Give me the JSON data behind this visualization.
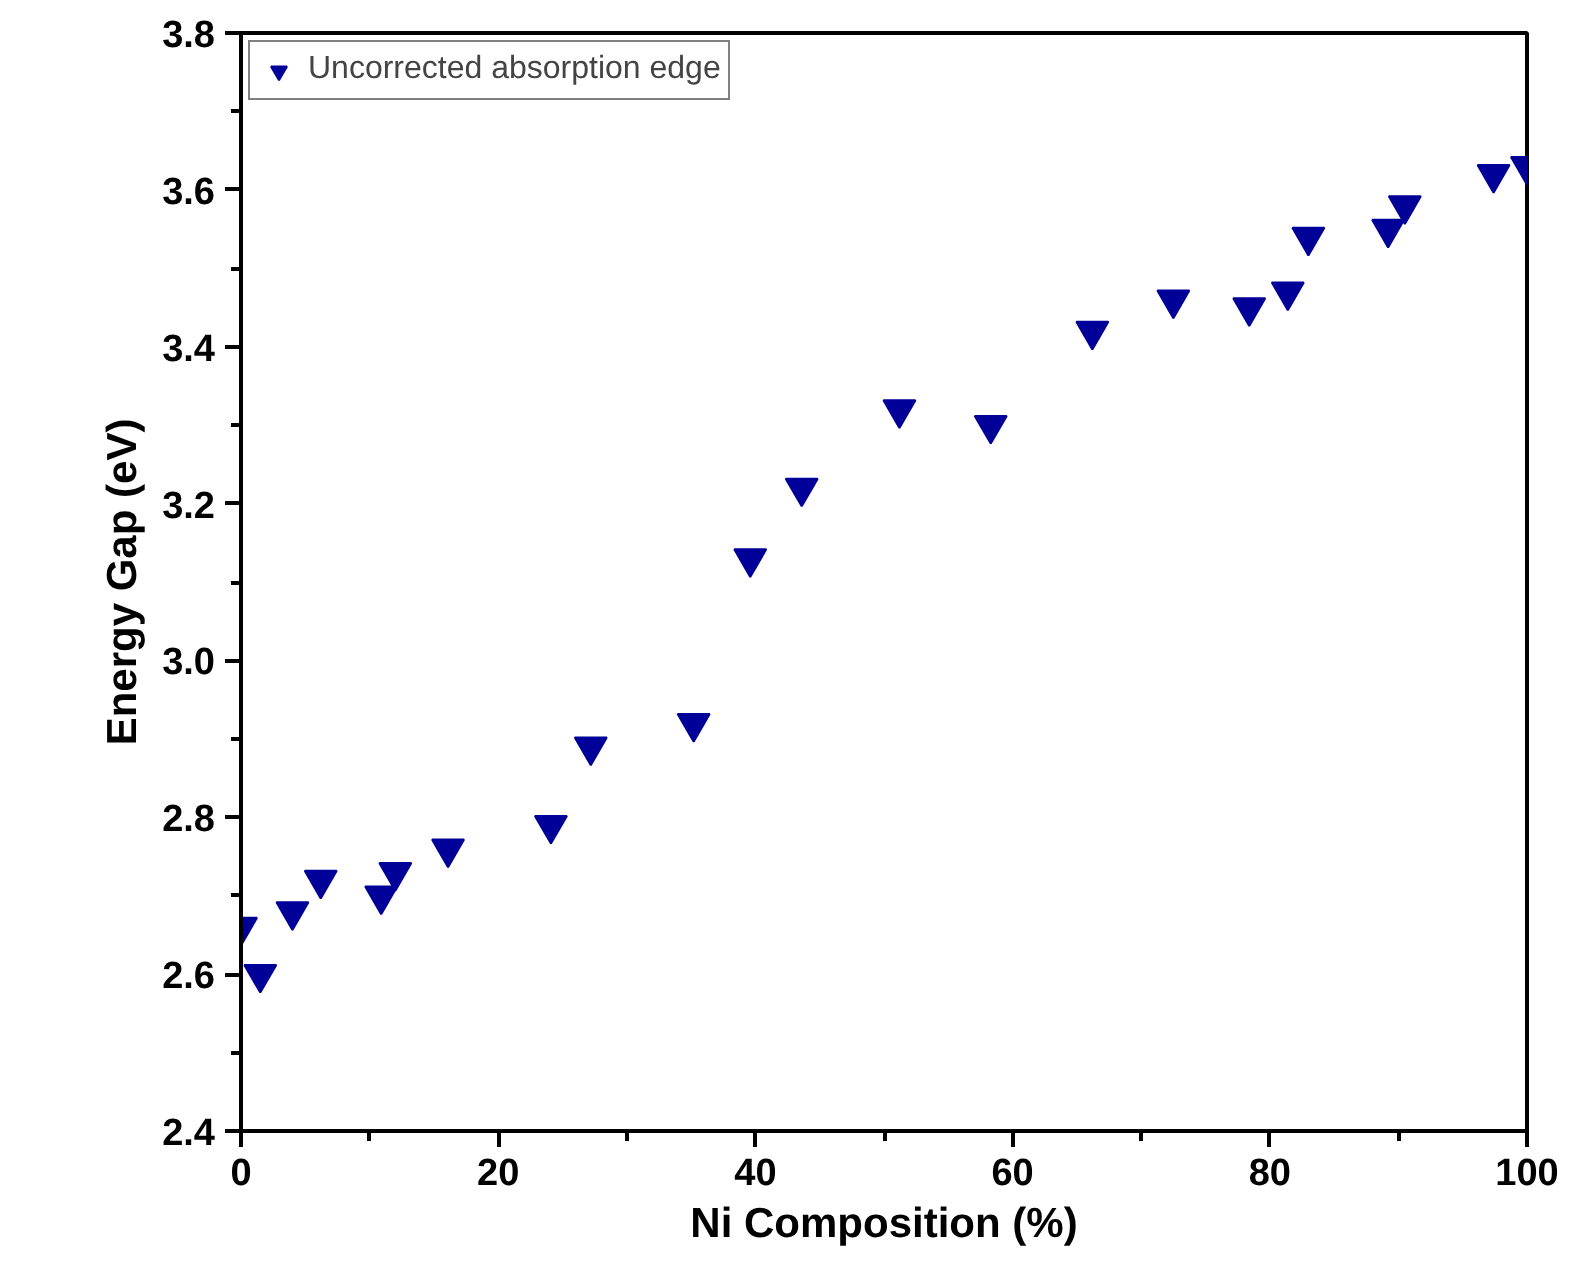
{
  "chart_data": {
    "type": "scatter",
    "xlabel": "Ni Composition (%)",
    "ylabel": "Energy Gap (eV)",
    "x": [
      0,
      1.5,
      4,
      6.2,
      10.9,
      12,
      16.1,
      24.1,
      27.2,
      35.2,
      39.6,
      43.6,
      51.2,
      58.3,
      66.2,
      72.5,
      78.4,
      81.4,
      83,
      89.2,
      90.5,
      97.4,
      100
    ],
    "series": [
      {
        "name": "Uncorrected absorption edge",
        "color": "#000099",
        "values": [
          2.66,
          2.6,
          2.68,
          2.72,
          2.7,
          2.73,
          2.76,
          2.79,
          2.89,
          2.92,
          3.13,
          3.22,
          3.32,
          3.3,
          3.42,
          3.46,
          3.45,
          3.47,
          3.54,
          3.55,
          3.58,
          3.62,
          3.63
        ]
      }
    ],
    "xlim": [
      0,
      100
    ],
    "ylim": [
      2.4,
      3.8
    ],
    "xticks": [
      0,
      {
        "value": 10,
        "label": null
      },
      20,
      {
        "value": 30,
        "label": null
      },
      40,
      {
        "value": 50,
        "label": null
      },
      60,
      {
        "value": 70,
        "label": null
      },
      80,
      {
        "value": 90,
        "label": null
      },
      100
    ],
    "yticks": [
      {
        "value": 2.4,
        "label": "2.4"
      },
      {
        "value": 2.5,
        "label": null
      },
      {
        "value": 2.6,
        "label": "2.6"
      },
      {
        "value": 2.7,
        "label": null
      },
      {
        "value": 2.8,
        "label": "2.8"
      },
      {
        "value": 2.9,
        "label": null
      },
      {
        "value": 3.0,
        "label": "3.0"
      },
      {
        "value": 3.1,
        "label": null
      },
      {
        "value": 3.2,
        "label": "3.2"
      },
      {
        "value": 3.3,
        "label": null
      },
      {
        "value": 3.4,
        "label": "3.4"
      },
      {
        "value": 3.5,
        "label": null
      },
      {
        "value": 3.6,
        "label": "3.6"
      },
      {
        "value": 3.7,
        "label": null
      },
      {
        "value": 3.8,
        "label": "3.8"
      }
    ],
    "marker": "triangle_down",
    "grid": false,
    "legend": "top left"
  }
}
